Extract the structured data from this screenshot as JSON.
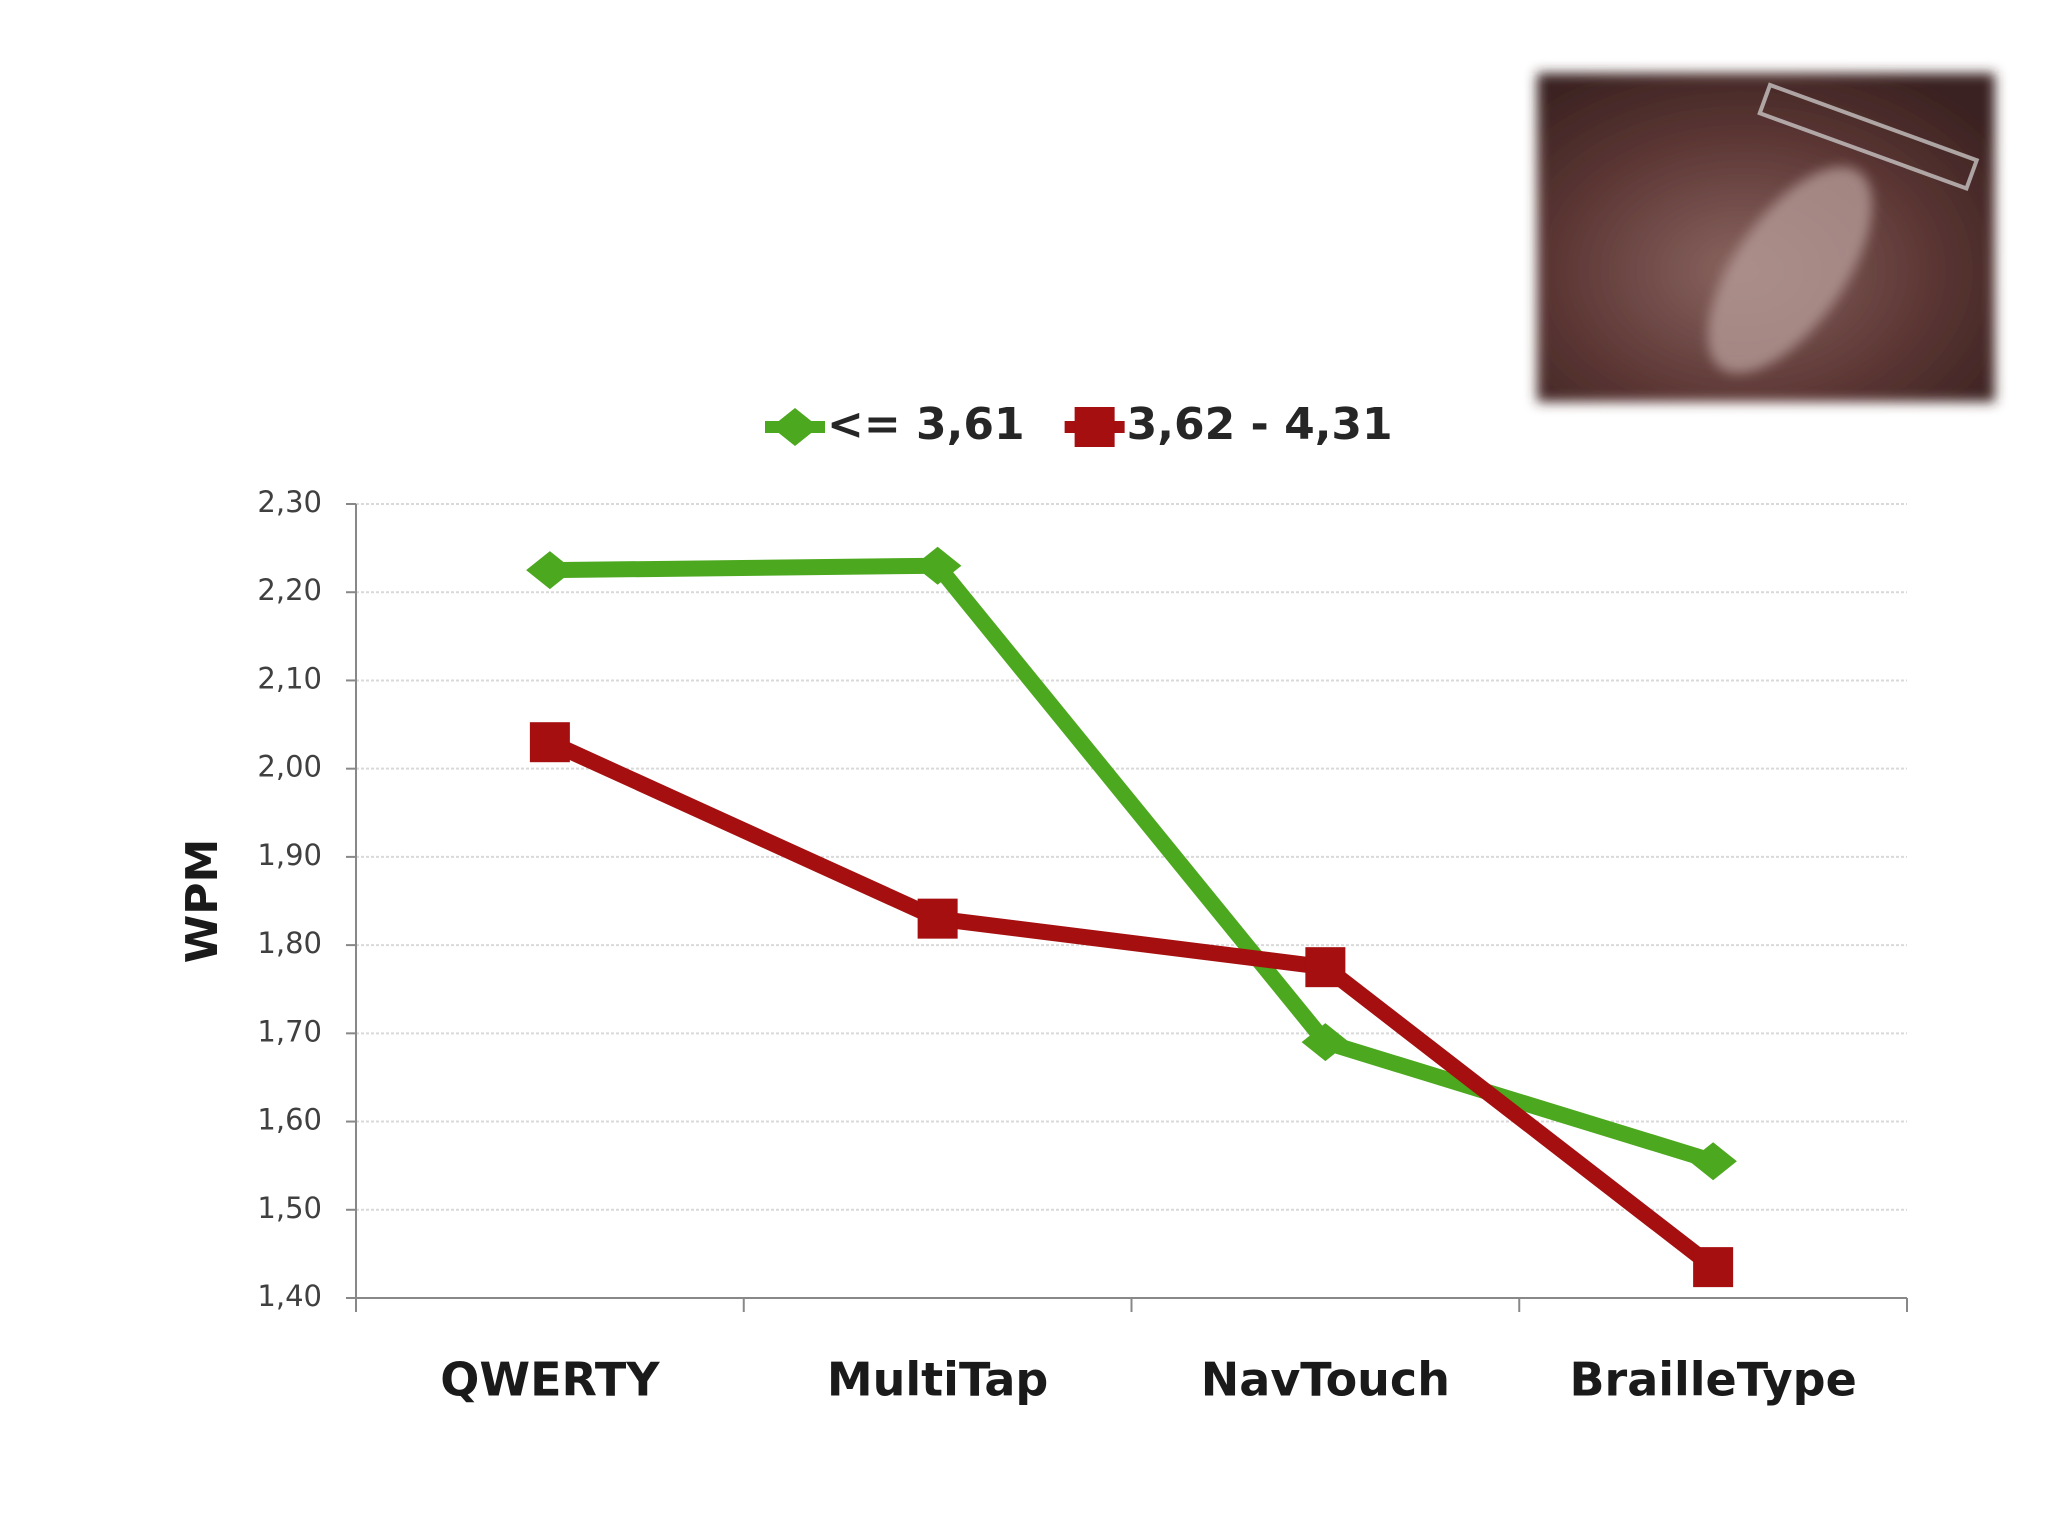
{
  "chart_data": {
    "type": "line",
    "y_label": "WPM",
    "categories": [
      "QWERTY",
      "MultiTap",
      "NavTouch",
      "BrailleType"
    ],
    "series": [
      {
        "name": "<= 3,61",
        "color": "#4ca81e",
        "marker": "diamond",
        "values": [
          2.225,
          2.23,
          1.69,
          1.555
        ]
      },
      {
        "name": "3,62 - 4,31",
        "color": "#a50f10",
        "marker": "square",
        "values": [
          2.03,
          1.83,
          1.775,
          1.435
        ]
      }
    ],
    "ylim": [
      1.4,
      2.3
    ],
    "yticks": [
      {
        "value": 1.4,
        "label": "1,40"
      },
      {
        "value": 1.5,
        "label": "1,50"
      },
      {
        "value": 1.6,
        "label": "1,60"
      },
      {
        "value": 1.7,
        "label": "1,70"
      },
      {
        "value": 1.8,
        "label": "1,80"
      },
      {
        "value": 1.9,
        "label": "1,90"
      },
      {
        "value": 2.0,
        "label": "2,00"
      },
      {
        "value": 2.1,
        "label": "2,10"
      },
      {
        "value": 2.2,
        "label": "2,20"
      },
      {
        "value": 2.3,
        "label": "2,30"
      }
    ],
    "grid": true,
    "legend": "top"
  }
}
